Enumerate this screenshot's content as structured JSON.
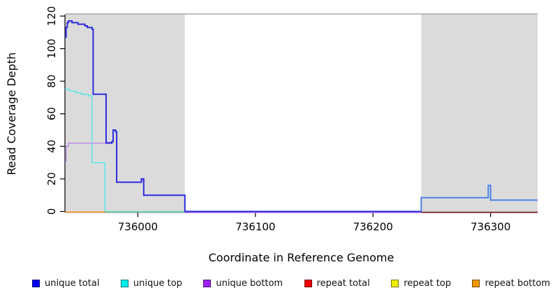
{
  "chart_data": {
    "type": "line",
    "title": "",
    "xlabel": "Coordinate in Reference Genome",
    "ylabel": "Read Coverage Depth",
    "xlim": [
      735938,
      736340
    ],
    "ylim": [
      0,
      120
    ],
    "x_ticks": [
      736000,
      736100,
      736200,
      736300
    ],
    "y_ticks": [
      0,
      20,
      40,
      60,
      80,
      100,
      120
    ],
    "grid": false,
    "legend_position": "bottom",
    "shaded_regions": [
      {
        "name": "left-alignment-region",
        "x1": 735938,
        "x2": 736040,
        "fill": "#dbdbdb"
      },
      {
        "name": "right-alignment-region",
        "x1": 736241,
        "x2": 736340,
        "fill": "#dbdbdb"
      }
    ],
    "region_top_line": {
      "y": 121.3,
      "color": "#999999",
      "width": 1.2
    },
    "series": [
      {
        "name": "unique top",
        "color": "#45e9e9",
        "width": 1.3,
        "points": [
          [
            735938,
            75
          ],
          [
            735942,
            75
          ],
          [
            735942,
            74
          ],
          [
            735947,
            74
          ],
          [
            735947,
            73
          ],
          [
            735952,
            73
          ],
          [
            735952,
            72
          ],
          [
            735958,
            72
          ],
          [
            735958,
            71
          ],
          [
            735961,
            71
          ],
          [
            735961,
            30
          ],
          [
            735972,
            30
          ],
          [
            735972,
            0
          ],
          [
            736040,
            0
          ]
        ]
      },
      {
        "name": "unique bottom",
        "color": "#b277e8",
        "width": 1.2,
        "points": [
          [
            735938,
            31
          ],
          [
            735939,
            31
          ],
          [
            735939,
            40
          ],
          [
            735941,
            40
          ],
          [
            735941,
            42
          ],
          [
            735973,
            42
          ],
          [
            735973,
            42.5
          ],
          [
            735978,
            42.5
          ],
          [
            735978,
            43
          ],
          [
            735979,
            43
          ],
          [
            735979,
            50
          ],
          [
            735981,
            50
          ],
          [
            735981,
            49
          ],
          [
            735982,
            49
          ],
          [
            735982,
            18
          ],
          [
            736003,
            18
          ],
          [
            736003,
            19
          ],
          [
            736005,
            19
          ],
          [
            736005,
            10
          ],
          [
            736040,
            10
          ],
          [
            736040,
            -0.7
          ],
          [
            736241,
            -0.7
          ]
        ]
      },
      {
        "name": "repeat bottom",
        "color": "#ff9121",
        "width": 1.5,
        "points": [
          [
            735938,
            -0.4
          ],
          [
            735972,
            -0.4
          ]
        ]
      },
      {
        "name": "baseline-green",
        "color": "#84d3a2",
        "width": 1.3,
        "points": [
          [
            735972,
            -0.3
          ],
          [
            736040,
            -0.3
          ]
        ]
      },
      {
        "name": "unique total",
        "segments": [
          {
            "color": "#2b2bdf",
            "width": 2,
            "points": [
              [
                735938,
                107
              ],
              [
                735939,
                107
              ],
              [
                735939,
                113
              ],
              [
                735940,
                113
              ],
              [
                735940,
                116
              ],
              [
                735941,
                116
              ],
              [
                735941,
                117
              ],
              [
                735944,
                117
              ],
              [
                735944,
                116
              ],
              [
                735949,
                116
              ],
              [
                735949,
                115
              ],
              [
                735955,
                115
              ],
              [
                735955,
                114
              ],
              [
                735957,
                114
              ],
              [
                735957,
                113
              ],
              [
                735961,
                113
              ],
              [
                735961,
                112
              ],
              [
                735962,
                112
              ],
              [
                735962,
                72
              ],
              [
                735973,
                72
              ],
              [
                735973,
                42
              ],
              [
                735978,
                42
              ],
              [
                735978,
                43
              ],
              [
                735979,
                43
              ],
              [
                735979,
                50
              ],
              [
                735981,
                50
              ],
              [
                735981,
                49
              ],
              [
                735982,
                49
              ],
              [
                735982,
                18
              ],
              [
                736003,
                18
              ],
              [
                736003,
                20
              ],
              [
                736005,
                20
              ],
              [
                736005,
                10
              ],
              [
                736040,
                10
              ],
              [
                736040,
                0
              ],
              [
                736241,
                0
              ]
            ]
          },
          {
            "color": "#4c82e8",
            "width": 2,
            "points": [
              [
                736241,
                0
              ],
              [
                736241,
                8.5
              ],
              [
                736298,
                8.5
              ],
              [
                736298,
                16
              ],
              [
                736300,
                16
              ],
              [
                736300,
                7
              ],
              [
                736340,
                7
              ]
            ]
          }
        ]
      },
      {
        "name": "repeat total",
        "color": "#d24054",
        "width": 1.3,
        "points": [
          [
            736241,
            -0.7
          ],
          [
            736340,
            -0.7
          ]
        ]
      },
      {
        "name": "repeat top",
        "color": "#eeee00",
        "width": 1.2,
        "points": []
      }
    ]
  },
  "legend": {
    "entries": [
      {
        "label": "unique total",
        "color": "#0000ee"
      },
      {
        "label": "unique top",
        "color": "#00eeee"
      },
      {
        "label": "unique bottom",
        "color": "#a020f0"
      },
      {
        "label": "repeat total",
        "color": "#ee0000"
      },
      {
        "label": "repeat top",
        "color": "#eeee00"
      },
      {
        "label": "repeat bottom",
        "color": "#ee9900"
      }
    ]
  }
}
